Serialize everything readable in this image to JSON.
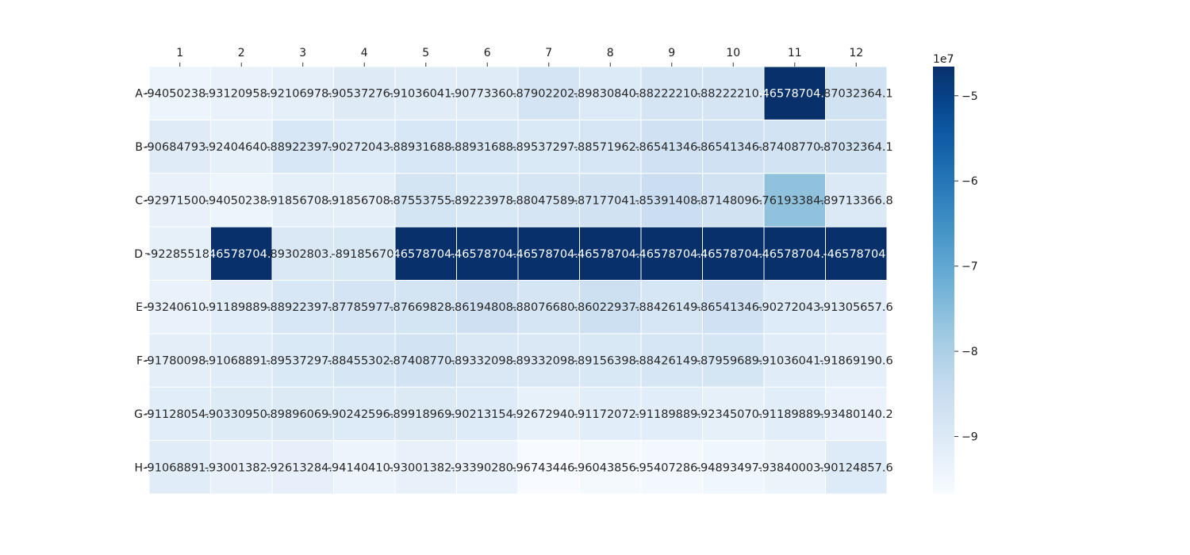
{
  "chart_data": {
    "type": "heatmap",
    "colormap": "Blues",
    "columns": [
      "1",
      "2",
      "3",
      "4",
      "5",
      "6",
      "7",
      "8",
      "9",
      "10",
      "11",
      "12"
    ],
    "rows": [
      "A",
      "B",
      "C",
      "D",
      "E",
      "F",
      "G",
      "H"
    ],
    "cell_labels": [
      [
        "-94050238.9",
        "-93120958.9",
        "-92106978.9",
        "-90537276.9",
        "-91036041.1",
        "-90773360.9",
        "-87902202.8",
        "-89830840.8",
        "-88222210.8",
        "-88222210.8",
        "-46578704.4",
        "-87032364.1"
      ],
      [
        "-90684793.9",
        "-92404640.8",
        "-88922397.8",
        "-90272043.9",
        "-88931688.8",
        "-88931688.9",
        "-89537297.8",
        "-88571962.8",
        "-86541346.8",
        "-86541346.9",
        "-87408770.9",
        "-87032364.1"
      ],
      [
        "-92971500.9",
        "-94050238.9",
        "-91856708.9",
        "-91856708.9",
        "-87553755.8",
        "-89223978.8",
        "-88047589.8",
        "-87177041.8",
        "-85391408.8",
        "-87148096.8",
        "-76193384.8",
        "-89713366.8"
      ],
      [
        "-92285518.",
        "-46578704.4",
        "-89302803.9",
        "-89185670.",
        "-46578704.4",
        "-46578704.4",
        "-46578704.4",
        "-46578704.4",
        "-46578704.4",
        "-46578704.4",
        "-46578704.4",
        "-46578704."
      ],
      [
        "-93240610.9",
        "-91189889.8",
        "-88922397.8",
        "-87785977.8",
        "-87669828.8",
        "-86194808.8",
        "-88076680.9",
        "-86022937.8",
        "-88426149.8",
        "-86541346.9",
        "-90272043.9",
        "-91305657.6"
      ],
      [
        "-91780098.9",
        "-91068891.8",
        "-89537297.8",
        "-88455302.9",
        "-87408770.9",
        "-89332098.9",
        "-89332098.9",
        "-89156398.8",
        "-88426149.8",
        "-87959689.9",
        "-91036041.1",
        "-91869190.6"
      ],
      [
        "-91128054.9",
        "-90330950.9",
        "-89896069.9",
        "-90242596.9",
        "-89918969.9",
        "-90213154.9",
        "-92672940.9",
        "-91172072.9",
        "-91189889.9",
        "-92345070.9",
        "-91189889.9",
        "-93480140.2"
      ],
      [
        "-91068891.9",
        "-93001382.9",
        "-92613284.9",
        "-94140410.9",
        "-93001382.9",
        "-93390280.9",
        "-96743446.9",
        "-96043856.9",
        "-95407286.9",
        "-94893497.9",
        "-93840003.9",
        "-90124857.6"
      ]
    ],
    "values": [
      [
        -94050238.9,
        -93120958.9,
        -92106978.9,
        -90537276.9,
        -91036041.1,
        -90773360.9,
        -87902202.8,
        -89830840.8,
        -88222210.8,
        -88222210.8,
        -46578704.4,
        -87032364.1
      ],
      [
        -90684793.9,
        -92404640.8,
        -88922397.8,
        -90272043.9,
        -88931688.8,
        -88931688.9,
        -89537297.8,
        -88571962.8,
        -86541346.8,
        -86541346.9,
        -87408770.9,
        -87032364.1
      ],
      [
        -92971500.9,
        -94050238.9,
        -91856708.9,
        -91856708.9,
        -87553755.8,
        -89223978.8,
        -88047589.8,
        -87177041.8,
        -85391408.8,
        -87148096.8,
        -76193384.8,
        -89713366.8
      ],
      [
        -92285518.0,
        -46578704.4,
        -89302803.9,
        -89185670.0,
        -46578704.4,
        -46578704.4,
        -46578704.4,
        -46578704.4,
        -46578704.4,
        -46578704.4,
        -46578704.4,
        -46578704.0
      ],
      [
        -93240610.9,
        -91189889.8,
        -88922397.8,
        -87785977.8,
        -87669828.8,
        -86194808.8,
        -88076680.9,
        -86022937.8,
        -88426149.8,
        -86541346.9,
        -90272043.9,
        -91305657.6
      ],
      [
        -91780098.9,
        -91068891.8,
        -89537297.8,
        -88455302.9,
        -87408770.9,
        -89332098.9,
        -89332098.9,
        -89156398.8,
        -88426149.8,
        -87959689.9,
        -91036041.1,
        -91869190.6
      ],
      [
        -91128054.9,
        -90330950.9,
        -89896069.9,
        -90242596.9,
        -89918969.9,
        -90213154.9,
        -92672940.9,
        -91172072.9,
        -91189889.9,
        -92345070.9,
        -91189889.9,
        -93480140.2
      ],
      [
        -91068891.9,
        -93001382.9,
        -92613284.9,
        -94140410.9,
        -93001382.9,
        -93390280.9,
        -96743446.9,
        -96043856.9,
        -95407286.9,
        -94893497.9,
        -93840003.9,
        -90124857.6
      ]
    ],
    "vmin": -96743446.9,
    "vmax": -46578704.0,
    "colorbar": {
      "ticks": [
        -9,
        -8,
        -7,
        -6,
        -5
      ],
      "tick_labels": [
        "−9",
        "−8",
        "−7",
        "−6",
        "−5"
      ],
      "scale_label": "1e7",
      "scale": 10000000
    },
    "grid": true,
    "xaxis_position": "top"
  }
}
